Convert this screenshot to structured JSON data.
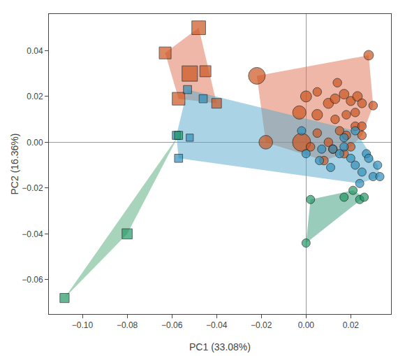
{
  "chart_data": {
    "type": "scatter",
    "x_label": "PC1 (33.08%)",
    "y_label": "PC2 (16.36%)",
    "xlim": [
      -0.115,
      0.038
    ],
    "ylim": [
      -0.075,
      0.056
    ],
    "xticks": [
      {
        "value": -0.1,
        "label": "−0.10"
      },
      {
        "value": -0.08,
        "label": "−0.08"
      },
      {
        "value": -0.06,
        "label": "−0.06"
      },
      {
        "value": -0.04,
        "label": "−0.04"
      },
      {
        "value": -0.02,
        "label": "−0.02"
      },
      {
        "value": 0.0,
        "label": "0.00"
      },
      0.02
    ],
    "yticks": [
      {
        "value": -0.06,
        "label": "−0.06"
      },
      {
        "value": -0.04,
        "label": "−0.04"
      },
      {
        "value": -0.02,
        "label": "−0.02"
      },
      {
        "value": 0.0,
        "label": "0.00"
      },
      0.02,
      0.04
    ],
    "grid": false,
    "series": [
      {
        "type": "hull",
        "color": "#E07050",
        "values": [
          [
            -0.063,
            0.039
          ],
          [
            -0.048,
            0.05
          ],
          [
            -0.052,
            0.03
          ],
          [
            -0.045,
            0.031
          ],
          [
            -0.057,
            0.019
          ],
          [
            -0.04,
            0.017
          ]
        ]
      },
      {
        "type": "hull",
        "color": "#E07050",
        "values": [
          [
            -0.022,
            0.029
          ],
          [
            -0.002,
            0.0
          ],
          [
            -0.018,
            0.0
          ],
          [
            -0.003,
            0.013
          ],
          [
            0.0,
            0.02
          ],
          [
            0.005,
            0.012
          ],
          [
            0.01,
            0.017
          ],
          [
            0.013,
            0.019
          ],
          [
            0.017,
            0.021
          ],
          [
            0.02,
            0.018
          ],
          [
            0.023,
            0.02
          ],
          [
            0.025,
            0.017
          ],
          [
            0.013,
            0.01
          ],
          [
            0.018,
            0.012
          ],
          [
            0.022,
            0.007
          ],
          [
            0.015,
            0.005
          ],
          [
            0.018,
            0.003
          ],
          [
            0.025,
            0.007
          ],
          [
            0.01,
            0.0
          ],
          [
            0.028,
            0.038
          ],
          [
            0.005,
            0.004
          ],
          [
            0.012,
            -0.003
          ],
          [
            0.008,
            -0.008
          ],
          [
            0.02,
            -0.002
          ],
          [
            0.03,
            0.016
          ],
          [
            0.014,
            0.026
          ],
          [
            0.002,
            -0.002
          ],
          [
            0.005,
            0.022
          ],
          [
            0.022,
            0.013
          ],
          [
            0.017,
            -0.005
          ],
          [
            0.025,
            0.003
          ]
        ]
      },
      {
        "type": "hull",
        "color": "#55AACC",
        "values": [
          [
            -0.053,
            0.023
          ],
          [
            -0.046,
            0.019
          ],
          [
            -0.058,
            0.003
          ],
          [
            -0.057,
            -0.007
          ],
          [
            -0.052,
            0.002
          ],
          [
            -0.002,
            0.005
          ],
          [
            0.0,
            -0.005
          ],
          [
            0.007,
            -0.003
          ],
          [
            0.012,
            -0.003
          ],
          [
            0.015,
            -0.005
          ],
          [
            0.017,
            -0.002
          ],
          [
            0.02,
            -0.007
          ],
          [
            0.022,
            -0.01
          ],
          [
            0.025,
            -0.013
          ],
          [
            0.03,
            -0.015
          ],
          [
            0.033,
            -0.015
          ],
          [
            0.027,
            -0.005
          ],
          [
            0.017,
            0.002
          ],
          [
            0.022,
            0.005
          ],
          [
            0.006,
            -0.008
          ],
          [
            0.011,
            -0.011
          ],
          [
            0.028,
            -0.007
          ],
          [
            0.024,
            -0.018
          ],
          [
            0.032,
            -0.01
          ]
        ]
      },
      {
        "type": "hull",
        "color": "#50AA78",
        "values": [
          [
            -0.108,
            -0.068
          ],
          [
            -0.08,
            -0.04
          ],
          [
            -0.057,
            0.003
          ]
        ]
      },
      {
        "type": "hull",
        "color": "#35997A",
        "values": [
          [
            0.017,
            -0.024
          ],
          [
            0.021,
            -0.021
          ],
          [
            0.024,
            -0.025
          ],
          [
            0.026,
            -0.024
          ],
          [
            0.0,
            -0.044
          ],
          [
            0.002,
            -0.025
          ]
        ]
      },
      {
        "type": "scatter",
        "marker": "square",
        "color": "#CC5520",
        "values": [
          [
            -0.063,
            0.039
          ],
          [
            -0.048,
            0.05
          ],
          [
            -0.052,
            0.03
          ],
          [
            -0.045,
            0.031
          ],
          [
            -0.057,
            0.019
          ],
          [
            -0.04,
            0.017
          ]
        ],
        "sizes": [
          150,
          200,
          250,
          130,
          170,
          100
        ]
      },
      {
        "type": "scatter",
        "marker": "square",
        "color": "#3090BB",
        "values": [
          [
            -0.053,
            0.023
          ],
          [
            -0.046,
            0.019
          ],
          [
            -0.058,
            0.003
          ],
          [
            -0.057,
            -0.007
          ],
          [
            -0.052,
            0.002
          ]
        ],
        "sizes": [
          70,
          70,
          70,
          70,
          55
        ]
      },
      {
        "type": "scatter",
        "marker": "square",
        "color": "#229966",
        "values": [
          [
            -0.108,
            -0.068
          ],
          [
            -0.08,
            -0.04
          ],
          [
            -0.057,
            0.003
          ]
        ],
        "sizes": [
          90,
          110,
          70
        ]
      },
      {
        "type": "scatter",
        "marker": "circle",
        "color": "#CC5520",
        "values": [
          [
            -0.022,
            0.029
          ],
          [
            -0.002,
            0.0
          ],
          [
            -0.018,
            0.0
          ],
          [
            -0.003,
            0.013
          ],
          [
            0.0,
            0.02
          ],
          [
            0.005,
            0.012
          ],
          [
            0.01,
            0.017
          ],
          [
            0.013,
            0.019
          ],
          [
            0.017,
            0.021
          ],
          [
            0.02,
            0.018
          ],
          [
            0.023,
            0.02
          ],
          [
            0.025,
            0.017
          ],
          [
            0.013,
            0.01
          ],
          [
            0.018,
            0.012
          ],
          [
            0.022,
            0.007
          ],
          [
            0.015,
            0.005
          ],
          [
            0.018,
            0.003
          ],
          [
            0.025,
            0.007
          ],
          [
            0.01,
            0.0
          ],
          [
            0.028,
            0.038
          ],
          [
            0.005,
            0.004
          ],
          [
            0.012,
            -0.003
          ],
          [
            0.008,
            -0.008
          ],
          [
            0.02,
            -0.002
          ],
          [
            0.03,
            0.016
          ],
          [
            0.014,
            0.026
          ],
          [
            0.002,
            -0.002
          ],
          [
            0.005,
            0.022
          ],
          [
            0.022,
            0.013
          ],
          [
            0.017,
            -0.005
          ],
          [
            0.025,
            0.003
          ]
        ],
        "sizes": [
          300,
          350,
          200,
          190,
          130,
          120,
          110,
          100,
          100,
          90,
          100,
          85,
          80,
          80,
          80,
          80,
          80,
          80,
          80,
          100,
          80,
          80,
          80,
          80,
          80,
          80,
          80,
          80,
          80,
          80,
          80
        ]
      },
      {
        "type": "scatter",
        "marker": "circle",
        "color": "#3090BB",
        "values": [
          [
            -0.002,
            0.005
          ],
          [
            0.0,
            -0.005
          ],
          [
            0.007,
            -0.003
          ],
          [
            0.012,
            -0.003
          ],
          [
            0.015,
            -0.005
          ],
          [
            0.017,
            -0.002
          ],
          [
            0.02,
            -0.007
          ],
          [
            0.022,
            -0.01
          ],
          [
            0.025,
            -0.013
          ],
          [
            0.03,
            -0.015
          ],
          [
            0.033,
            -0.015
          ],
          [
            0.027,
            -0.005
          ],
          [
            0.017,
            0.002
          ],
          [
            0.022,
            0.005
          ],
          [
            0.006,
            -0.008
          ],
          [
            0.011,
            -0.011
          ],
          [
            0.028,
            -0.007
          ],
          [
            0.024,
            -0.018
          ],
          [
            0.032,
            -0.01
          ]
        ],
        "sizes": [
          75,
          75,
          75,
          75,
          75,
          75,
          75,
          75,
          75,
          75,
          75,
          75,
          75,
          75,
          75,
          75,
          75,
          75,
          75
        ]
      },
      {
        "type": "scatter",
        "marker": "circle",
        "color": "#229966",
        "values": [
          [
            0.017,
            -0.024
          ],
          [
            0.021,
            -0.021
          ],
          [
            0.024,
            -0.025
          ],
          [
            0.026,
            -0.024
          ],
          [
            0.0,
            -0.044
          ],
          [
            0.002,
            -0.025
          ]
        ],
        "sizes": [
          75,
          75,
          75,
          75,
          75,
          75
        ]
      }
    ]
  }
}
